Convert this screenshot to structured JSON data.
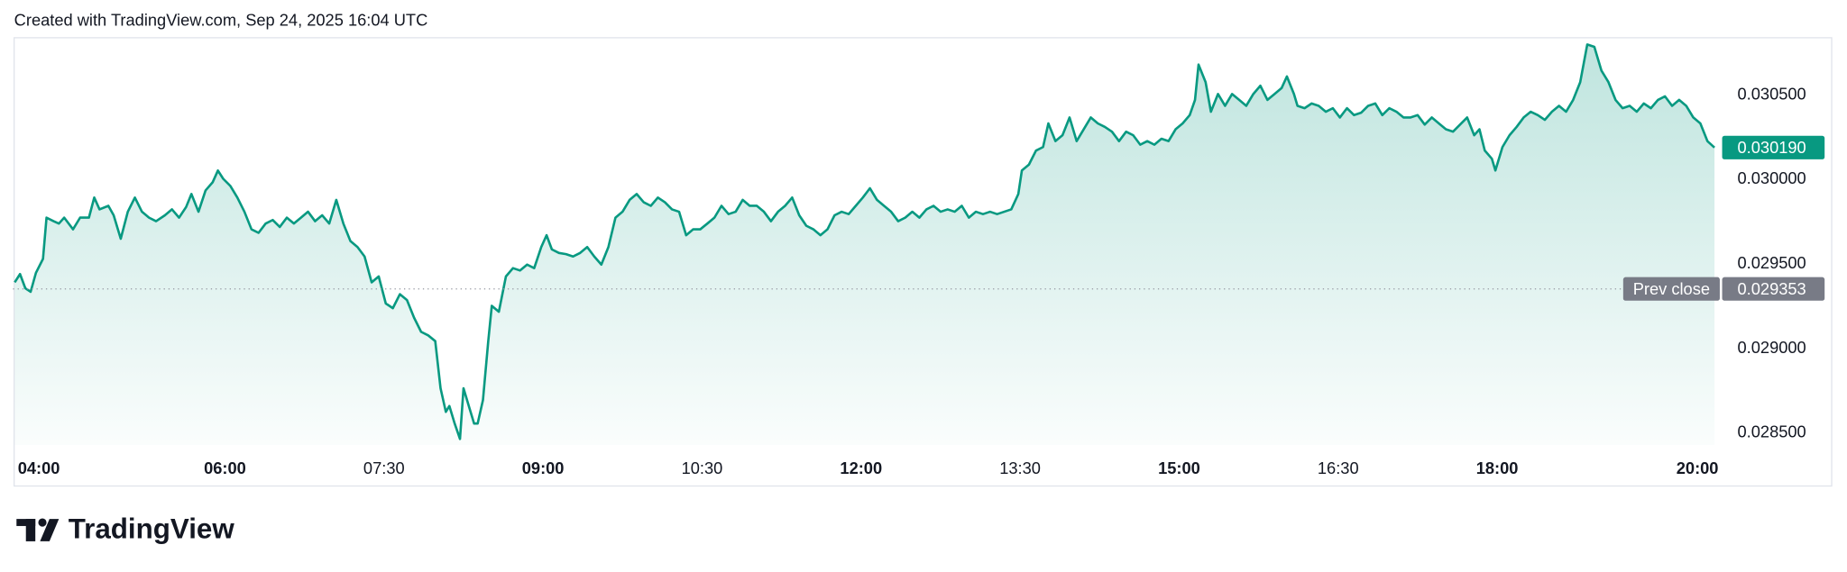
{
  "header": "Created with TradingView.com, Sep 24, 2025 16:04 UTC",
  "logo_text": "TradingView",
  "chart_data": {
    "type": "area",
    "color": "#089981",
    "xlim": [
      240,
      1204
    ],
    "ylim": [
      0.02843,
      0.03084
    ],
    "xticks": [
      {
        "value": 240,
        "label": "04:00",
        "bold": true
      },
      {
        "value": 360,
        "label": "06:00",
        "bold": true
      },
      {
        "value": 450,
        "label": "07:30"
      },
      {
        "value": 540,
        "label": "09:00",
        "bold": true
      },
      {
        "value": 630,
        "label": "10:30"
      },
      {
        "value": 720,
        "label": "12:00",
        "bold": true
      },
      {
        "value": 810,
        "label": "13:30"
      },
      {
        "value": 900,
        "label": "15:00",
        "bold": true
      },
      {
        "value": 990,
        "label": "16:30"
      },
      {
        "value": 1080,
        "label": "18:00",
        "bold": true
      },
      {
        "value": 1200,
        "label": "20:00",
        "bold": true
      }
    ],
    "yticks": [
      {
        "value": 0.0285,
        "label": "0.028500"
      },
      {
        "value": 0.029,
        "label": "0.029000"
      },
      {
        "value": 0.0295,
        "label": "0.029500"
      },
      {
        "value": 0.03,
        "label": "0.030000"
      },
      {
        "value": 0.0305,
        "label": "0.030500"
      }
    ],
    "grid": false,
    "prev_close": {
      "name": "Prev close",
      "value": 0.029353,
      "label": "0.029353"
    },
    "last_price": {
      "value": 0.03019,
      "label": "0.030190"
    },
    "x": [
      241,
      244,
      247,
      250,
      253,
      257,
      259,
      263,
      266,
      269,
      274,
      278,
      283,
      286,
      289,
      294,
      297,
      301,
      305,
      309,
      313,
      317,
      321,
      326,
      330,
      334,
      338,
      341,
      345,
      349,
      353,
      356,
      359,
      363,
      367,
      371,
      375,
      379,
      383,
      387,
      391,
      395,
      399,
      403,
      407,
      411,
      415,
      419,
      423,
      427,
      431,
      435,
      439,
      443,
      447,
      451,
      455,
      459,
      463,
      467,
      471,
      475,
      479,
      482,
      485,
      487,
      490,
      493,
      495,
      498,
      501,
      503,
      506,
      509,
      511,
      515,
      519,
      523,
      527,
      531,
      535,
      539,
      542,
      545,
      549,
      553,
      557,
      561,
      565,
      569,
      573,
      577,
      581,
      585,
      589,
      593,
      597,
      601,
      605,
      609,
      613,
      617,
      621,
      625,
      629,
      633,
      637,
      641,
      645,
      649,
      653,
      657,
      661,
      665,
      669,
      673,
      677,
      681,
      685,
      689,
      693,
      697,
      701,
      705,
      709,
      713,
      717,
      721,
      725,
      729,
      733,
      737,
      741,
      745,
      749,
      753,
      757,
      761,
      765,
      769,
      773,
      777,
      781,
      785,
      789,
      793,
      797,
      801,
      805,
      809,
      811,
      815,
      819,
      823,
      826,
      830,
      834,
      838,
      842,
      846,
      850,
      854,
      858,
      862,
      866,
      870,
      874,
      878,
      882,
      886,
      890,
      894,
      898,
      902,
      906,
      909,
      911,
      915,
      918,
      922,
      926,
      930,
      934,
      938,
      942,
      946,
      950,
      954,
      958,
      961,
      965,
      967,
      971,
      975,
      979,
      983,
      987,
      991,
      995,
      999,
      1003,
      1007,
      1011,
      1015,
      1019,
      1023,
      1027,
      1031,
      1035,
      1039,
      1043,
      1047,
      1051,
      1055,
      1059,
      1063,
      1067,
      1070,
      1073,
      1077,
      1079,
      1083,
      1087,
      1091,
      1095,
      1099,
      1103,
      1107,
      1111,
      1115,
      1119,
      1123,
      1127,
      1131,
      1135,
      1139,
      1143,
      1147,
      1151,
      1155,
      1159,
      1163,
      1167,
      1171,
      1175,
      1179,
      1183,
      1187,
      1191,
      1195,
      1199,
      1203
    ],
    "values": [
      0.029392,
      0.029441,
      0.029357,
      0.029336,
      0.029448,
      0.029531,
      0.029775,
      0.029754,
      0.02974,
      0.029775,
      0.029706,
      0.029775,
      0.029775,
      0.029894,
      0.029824,
      0.029845,
      0.029789,
      0.02965,
      0.02981,
      0.029894,
      0.02981,
      0.029775,
      0.029754,
      0.029789,
      0.029824,
      0.029775,
      0.029838,
      0.029915,
      0.02981,
      0.029936,
      0.029984,
      0.030054,
      0.030005,
      0.029963,
      0.029894,
      0.02981,
      0.029706,
      0.029685,
      0.02974,
      0.029761,
      0.02972,
      0.029775,
      0.02974,
      0.029775,
      0.02981,
      0.029754,
      0.029789,
      0.02974,
      0.02988,
      0.02974,
      0.029636,
      0.029601,
      0.029545,
      0.029392,
      0.029427,
      0.029267,
      0.029239,
      0.029322,
      0.029287,
      0.029183,
      0.029099,
      0.029078,
      0.029044,
      0.028765,
      0.028625,
      0.02866,
      0.028556,
      0.028465,
      0.028765,
      0.02866,
      0.028556,
      0.028556,
      0.028695,
      0.029044,
      0.029253,
      0.029218,
      0.029427,
      0.029476,
      0.029462,
      0.029497,
      0.029476,
      0.029601,
      0.029671,
      0.029587,
      0.029566,
      0.029559,
      0.029545,
      0.029566,
      0.029601,
      0.029545,
      0.029497,
      0.029601,
      0.029775,
      0.02981,
      0.02988,
      0.029915,
      0.029866,
      0.029845,
      0.029894,
      0.029866,
      0.029824,
      0.02981,
      0.029671,
      0.029706,
      0.029706,
      0.02974,
      0.029775,
      0.029845,
      0.029796,
      0.02981,
      0.02988,
      0.029845,
      0.029845,
      0.02981,
      0.029754,
      0.02981,
      0.029845,
      0.029894,
      0.029789,
      0.029727,
      0.029706,
      0.029671,
      0.029706,
      0.029789,
      0.02981,
      0.029796,
      0.029845,
      0.029894,
      0.029949,
      0.02988,
      0.029845,
      0.02981,
      0.029754,
      0.029775,
      0.02981,
      0.029775,
      0.029824,
      0.029845,
      0.02981,
      0.029824,
      0.02981,
      0.029845,
      0.029775,
      0.02981,
      0.029796,
      0.02981,
      0.029796,
      0.02981,
      0.029824,
      0.029915,
      0.030054,
      0.030089,
      0.030172,
      0.030193,
      0.030333,
      0.030228,
      0.030263,
      0.030368,
      0.030228,
      0.030298,
      0.030368,
      0.030333,
      0.030312,
      0.030284,
      0.030228,
      0.030284,
      0.030263,
      0.030207,
      0.030228,
      0.030207,
      0.030242,
      0.030228,
      0.030298,
      0.030333,
      0.030382,
      0.030472,
      0.030681,
      0.030577,
      0.030402,
      0.030507,
      0.030437,
      0.030507,
      0.030472,
      0.030437,
      0.030507,
      0.030556,
      0.030472,
      0.030507,
      0.030542,
      0.030611,
      0.030507,
      0.030437,
      0.030423,
      0.030451,
      0.030437,
      0.030402,
      0.030423,
      0.030368,
      0.030423,
      0.030382,
      0.030396,
      0.030437,
      0.030451,
      0.030382,
      0.030423,
      0.030402,
      0.030368,
      0.030368,
      0.030382,
      0.030326,
      0.030368,
      0.030333,
      0.030298,
      0.030284,
      0.030326,
      0.030368,
      0.030263,
      0.030298,
      0.030172,
      0.030124,
      0.030054,
      0.030193,
      0.030263,
      0.030312,
      0.030368,
      0.030402,
      0.030382,
      0.030354,
      0.030402,
      0.030437,
      0.030402,
      0.030472,
      0.030577,
      0.0308,
      0.030786,
      0.030646,
      0.030577,
      0.030472,
      0.030423,
      0.030437,
      0.030402,
      0.030451,
      0.030423,
      0.030472,
      0.030493,
      0.030437,
      0.030472,
      0.030437,
      0.030368,
      0.030333,
      0.030228,
      0.03019
    ]
  }
}
